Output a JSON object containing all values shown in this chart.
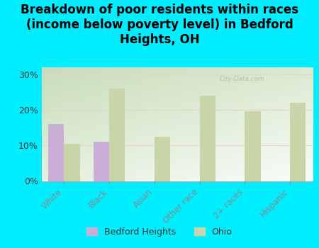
{
  "title": "Breakdown of poor residents within races\n(income below poverty level) in Bedford\nHeights, OH",
  "categories": [
    "White",
    "Black",
    "Asian",
    "Other race",
    "2+ races",
    "Hispanic"
  ],
  "bedford_values": [
    16.0,
    11.0,
    0,
    0,
    0,
    0
  ],
  "ohio_values": [
    10.5,
    26.0,
    12.5,
    24.0,
    19.5,
    22.0
  ],
  "bedford_color": "#c9aed6",
  "ohio_color": "#c8d5a8",
  "background_outer": "#00eeff",
  "background_plot_topleft": "#c8ddb8",
  "background_plot_topright": "#e8f0e0",
  "background_plot_bottomleft": "#ddeedd",
  "background_plot_bottomright": "#f8fdf8",
  "yticks": [
    0,
    10,
    20,
    30
  ],
  "ylim": [
    0,
    32
  ],
  "bar_width": 0.35,
  "title_fontsize": 12,
  "watermark": "City-Data.com"
}
